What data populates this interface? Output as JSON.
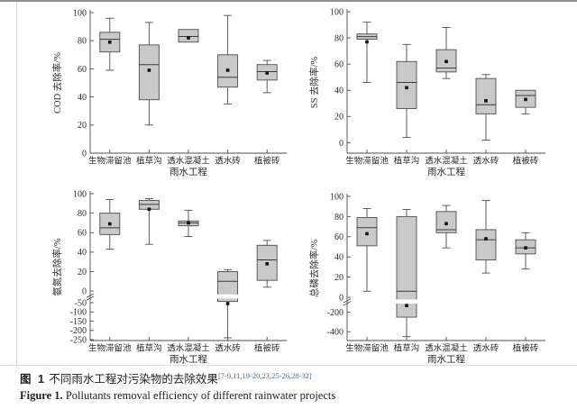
{
  "caption": {
    "zh_prefix": "图 1",
    "zh_text": "不同雨水工程对污染物的去除效果",
    "zh_refs": "[7-9,11,19-20,23,25-26,28-32]",
    "en_prefix": "Figure 1.",
    "en_text": "Pollutants removal efficiency of different rainwater projects"
  },
  "colors": {
    "box_fill": "#c9c9c9",
    "box_stroke": "#4d4d4d",
    "median_stroke": "#3a3a3a",
    "axis": "#4d4d4d",
    "mean_marker": "#111111",
    "ref_link": "#4a6d96",
    "text": "#2b2b2b"
  },
  "chart_data": [
    {
      "type": "boxplot",
      "title": "",
      "ylabel": "COD 去除率/%",
      "xlabel": "雨水工程",
      "categories": [
        "生物滞留池",
        "植草沟",
        "透水混凝土",
        "透水砖",
        "植被砖"
      ],
      "ylim": [
        0,
        100
      ],
      "grid": false,
      "anchors": [
        {
          "v": 0,
          "f": 0
        },
        {
          "v": 100,
          "f": 1
        }
      ],
      "breaks_f": [],
      "yticks": [
        {
          "v": 0,
          "t": "0"
        },
        {
          "v": 20,
          "t": "20"
        },
        {
          "v": 40,
          "t": "40"
        },
        {
          "v": 60,
          "t": "60"
        },
        {
          "v": 80,
          "t": "80"
        },
        {
          "v": 100,
          "t": "100"
        }
      ],
      "boxes": [
        {
          "low": 59,
          "q1": 72,
          "median": 81,
          "q3": 86,
          "high": 96,
          "mean": 79
        },
        {
          "low": 20,
          "q1": 38,
          "median": 63,
          "q3": 77,
          "high": 93,
          "mean": 59
        },
        {
          "low": null,
          "q1": 79,
          "median": 83,
          "q3": 88,
          "high": null,
          "mean": 82
        },
        {
          "low": 35,
          "q1": 47,
          "median": 54,
          "q3": 70,
          "high": 98,
          "mean": 59
        },
        {
          "low": 43,
          "q1": 52,
          "median": 58,
          "q3": 63,
          "high": 66,
          "mean": 57
        }
      ]
    },
    {
      "type": "boxplot",
      "title": "",
      "ylabel": "SS 去除率/%",
      "xlabel": "雨水工程",
      "categories": [
        "生物滞留池",
        "植草沟",
        "透水混凝土",
        "透水砖",
        "植被砖"
      ],
      "ylim": [
        -8,
        100
      ],
      "grid": false,
      "anchors": [
        {
          "v": -8,
          "f": 0
        },
        {
          "v": 100,
          "f": 1
        }
      ],
      "breaks_f": [],
      "yticks": [
        {
          "v": 0,
          "t": "0"
        },
        {
          "v": 20,
          "t": "20"
        },
        {
          "v": 40,
          "t": "40"
        },
        {
          "v": 60,
          "t": "60"
        },
        {
          "v": 80,
          "t": "80"
        },
        {
          "v": 100,
          "t": "100"
        }
      ],
      "boxes": [
        {
          "low": 46,
          "q1": 79,
          "median": 81,
          "q3": 83,
          "high": 92,
          "mean": 77
        },
        {
          "low": 4,
          "q1": 26,
          "median": 46,
          "q3": 62,
          "high": 75,
          "mean": 42
        },
        {
          "low": 49,
          "q1": 54,
          "median": 57,
          "q3": 71,
          "high": 88,
          "mean": 62
        },
        {
          "low": 2,
          "q1": 22,
          "median": 29,
          "q3": 49,
          "high": 52,
          "mean": 32
        },
        {
          "low": 22,
          "q1": 27,
          "median": 36,
          "q3": 40,
          "high": null,
          "mean": 33
        }
      ]
    },
    {
      "type": "boxplot",
      "title": "",
      "ylabel": "氨氮去除率/%",
      "xlabel": "雨水工程",
      "categories": [
        "生物滞留池",
        "植草沟",
        "透水混凝土",
        "透水砖",
        "植被砖"
      ],
      "ylim": [
        -255,
        100
      ],
      "grid": false,
      "axis_break": "between 0 and -50",
      "anchors": [
        {
          "v": -255,
          "f": 0
        },
        {
          "v": -250,
          "f": 0.006
        },
        {
          "v": -50,
          "f": 0.258
        },
        {
          "v": 0,
          "f": 0.337
        },
        {
          "v": 100,
          "f": 1
        }
      ],
      "breaks_f": [
        0.3
      ],
      "yticks": [
        {
          "v": -250,
          "t": "-250"
        },
        {
          "v": -200,
          "t": "-200"
        },
        {
          "v": -150,
          "t": "-150"
        },
        {
          "v": -100,
          "t": "-100"
        },
        {
          "v": -50,
          "t": "-50"
        },
        {
          "v": 0,
          "t": "0"
        },
        {
          "v": 20,
          "t": "20"
        },
        {
          "v": 40,
          "t": "40"
        },
        {
          "v": 60,
          "t": "60"
        },
        {
          "v": 80,
          "t": "80"
        },
        {
          "v": 100,
          "t": "100"
        }
      ],
      "boxes": [
        {
          "low": 43,
          "q1": 58,
          "median": 65,
          "q3": 80,
          "high": 94,
          "mean": 69
        },
        {
          "low": 48,
          "q1": 84,
          "median": 89,
          "q3": 93,
          "high": 95,
          "mean": 84
        },
        {
          "low": 56,
          "q1": 67,
          "median": 70,
          "q3": 72,
          "high": 83,
          "mean": 70
        },
        {
          "low": -240,
          "q1": -45,
          "median": 10,
          "q3": 20,
          "high": 22,
          "mean": -55
        },
        {
          "low": 4,
          "q1": 11,
          "median": 32,
          "q3": 47,
          "high": 52,
          "mean": 28
        }
      ]
    },
    {
      "type": "boxplot",
      "title": "",
      "ylabel": "总磷去除率/%",
      "xlabel": "雨水工程",
      "categories": [
        "生物滞留池",
        "植草沟",
        "透水混凝土",
        "透水砖",
        "植被砖"
      ],
      "ylim": [
        -490,
        100
      ],
      "grid": false,
      "axis_break": "between 0 and -200",
      "anchors": [
        {
          "v": -490,
          "f": 0
        },
        {
          "v": -400,
          "f": 0.061
        },
        {
          "v": -200,
          "f": 0.196
        },
        {
          "v": 0,
          "f": 0.3
        },
        {
          "v": 100,
          "f": 1
        }
      ],
      "breaks_f": [
        0.27
      ],
      "yticks": [
        {
          "v": -400,
          "t": "-400"
        },
        {
          "v": -200,
          "t": "-200"
        },
        {
          "v": 0,
          "t": "0"
        },
        {
          "v": 20,
          "t": "20"
        },
        {
          "v": 40,
          "t": "40"
        },
        {
          "v": 60,
          "t": "60"
        },
        {
          "v": 80,
          "t": "80"
        },
        {
          "v": 100,
          "t": "100"
        }
      ],
      "boxes": [
        {
          "low": 6,
          "q1": 51,
          "median": 69,
          "q3": 79,
          "high": 88,
          "mean": 63
        },
        {
          "low": -450,
          "q1": -250,
          "median": 6,
          "q3": 80,
          "high": 87,
          "mean": -110
        },
        {
          "low": 49,
          "q1": 64,
          "median": 67,
          "q3": 85,
          "high": 91,
          "mean": 73
        },
        {
          "low": 24,
          "q1": 37,
          "median": 57,
          "q3": 67,
          "high": 96,
          "mean": 58
        },
        {
          "low": 28,
          "q1": 43,
          "median": 49,
          "q3": 57,
          "high": 64,
          "mean": 49
        }
      ]
    }
  ]
}
